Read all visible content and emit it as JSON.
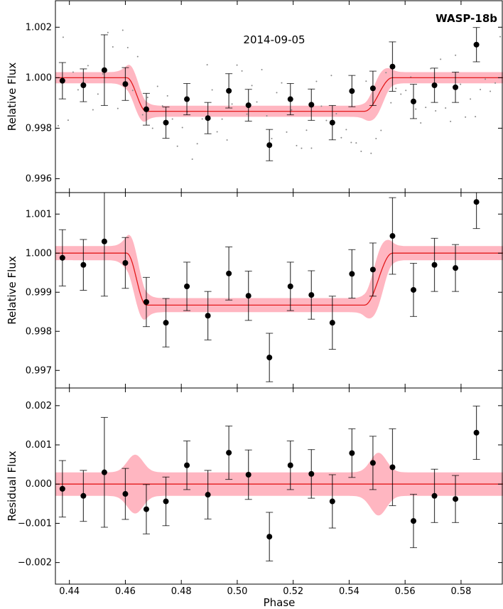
{
  "title": "WASP-18b",
  "date_label": "2014-09-05",
  "chart_data": {
    "type": "scatter",
    "xlabel": "Phase",
    "xlim": [
      0.435,
      0.595
    ],
    "x_ticks": [
      0.44,
      0.46,
      0.48,
      0.5,
      0.52,
      0.54,
      0.56,
      0.58
    ],
    "x_tick_labels": [
      "0.44",
      "0.46",
      "0.48",
      "0.50",
      "0.52",
      "0.54",
      "0.56",
      "0.58"
    ],
    "colors": {
      "points": "#000000",
      "model": "#e31a1c",
      "band": "#ffb6c1",
      "raw": "#888888"
    },
    "transit": {
      "t1": 0.4605,
      "t2": 0.4675,
      "t3": 0.5455,
      "t4": 0.5555,
      "depth": 0.00133
    },
    "binned": {
      "x": [
        0.4375,
        0.445,
        0.4525,
        0.46,
        0.4675,
        0.4745,
        0.482,
        0.4895,
        0.497,
        0.504,
        0.5115,
        0.519,
        0.5265,
        0.534,
        0.541,
        0.5485,
        0.5555,
        0.563,
        0.5705,
        0.578,
        0.5855
      ],
      "flux": [
        0.99988,
        0.9997,
        1.0003,
        0.99975,
        0.99875,
        0.99822,
        0.99915,
        0.9984,
        0.99948,
        0.99891,
        0.99733,
        0.99915,
        0.99893,
        0.99822,
        0.99947,
        0.99958,
        1.00044,
        0.99906,
        0.9997,
        0.99962,
        1.00131
      ],
      "err": [
        0.00072,
        0.00065,
        0.0014,
        0.00065,
        0.00063,
        0.00062,
        0.00062,
        0.00062,
        0.00068,
        0.00063,
        0.00062,
        0.00062,
        0.00062,
        0.00068,
        0.00062,
        0.00068,
        0.00098,
        0.00068,
        0.00068,
        0.0006,
        0.00068
      ],
      "residual": [
        -0.00012,
        -0.0003,
        0.0003,
        -0.00025,
        -0.00064,
        -0.00044,
        0.00048,
        -0.00027,
        0.0008,
        0.00024,
        -0.00134,
        0.00048,
        0.00026,
        -0.00044,
        0.00079,
        0.00054,
        0.00043,
        -0.00094,
        -0.0003,
        -0.00038,
        0.00131
      ]
    },
    "panels": [
      {
        "name": "top",
        "ylabel": "Relative Flux",
        "ylim": [
          0.99545,
          1.00305
        ],
        "y_ticks": [
          0.996,
          0.998,
          1.0,
          1.002
        ],
        "y_tick_labels": [
          "0.996",
          "0.998",
          "1.000",
          "1.002"
        ],
        "show_raw": true,
        "band_halfwidth": 0.00022
      },
      {
        "name": "middle",
        "ylabel": "Relative Flux",
        "ylim": [
          0.99655,
          1.00155
        ],
        "y_ticks": [
          0.997,
          0.998,
          0.999,
          1.0,
          1.001
        ],
        "y_tick_labels": [
          "0.997",
          "0.998",
          "0.999",
          "1.000",
          "1.001"
        ],
        "show_raw": false,
        "band_halfwidth": 0.00018
      },
      {
        "name": "bottom",
        "ylabel": "Residual Flux",
        "ylim": [
          -0.00255,
          0.00245
        ],
        "y_ticks": [
          -0.002,
          -0.001,
          0.0,
          0.001,
          0.002
        ],
        "y_tick_labels": [
          "−0.002",
          "−0.001",
          "0.000",
          "0.001",
          "0.002"
        ],
        "show_raw": false,
        "band_halfwidth": 0.0003
      }
    ]
  }
}
